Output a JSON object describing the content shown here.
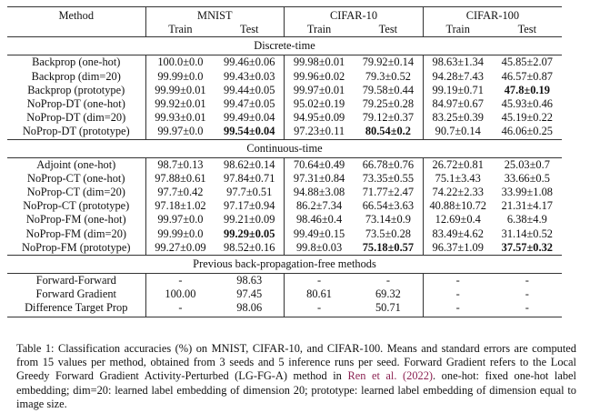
{
  "table": {
    "header": {
      "method": "Method",
      "datasets": [
        "MNIST",
        "CIFAR-10",
        "CIFAR-100"
      ],
      "splits": [
        "Train",
        "Test",
        "Train",
        "Test",
        "Train",
        "Test"
      ]
    },
    "sections": [
      {
        "title": "Discrete-time",
        "rows": [
          {
            "method": "Backprop (one-hot)",
            "cells": [
              "100.0±0.0",
              "99.46±0.06",
              "99.98±0.01",
              "79.92±0.14",
              "98.63±1.34",
              "45.85±2.07"
            ],
            "bold": []
          },
          {
            "method": "Backprop (dim=20)",
            "cells": [
              "99.99±0.0",
              "99.43±0.03",
              "99.96±0.02",
              "79.3±0.52",
              "94.28±7.43",
              "46.57±0.87"
            ],
            "bold": []
          },
          {
            "method": "Backprop (prototype)",
            "cells": [
              "99.99±0.01",
              "99.44±0.05",
              "99.97±0.01",
              "79.58±0.44",
              "99.19±0.71",
              "47.8±0.19"
            ],
            "bold": [
              5
            ]
          },
          {
            "method": "NoProp-DT (one-hot)",
            "cells": [
              "99.92±0.01",
              "99.47±0.05",
              "95.02±0.19",
              "79.25±0.28",
              "84.97±0.67",
              "45.93±0.46"
            ],
            "bold": []
          },
          {
            "method": "NoProp-DT (dim=20)",
            "cells": [
              "99.93±0.01",
              "99.49±0.04",
              "94.95±0.09",
              "79.12±0.37",
              "83.25±0.39",
              "45.19±0.22"
            ],
            "bold": []
          },
          {
            "method": "NoProp-DT (prototype)",
            "cells": [
              "99.97±0.0",
              "99.54±0.04",
              "97.23±0.11",
              "80.54±0.2",
              "90.7±0.14",
              "46.06±0.25"
            ],
            "bold": [
              1,
              3
            ]
          }
        ]
      },
      {
        "title": "Continuous-time",
        "rows": [
          {
            "method": "Adjoint (one-hot)",
            "cells": [
              "98.7±0.13",
              "98.62±0.14",
              "70.64±0.49",
              "66.78±0.76",
              "26.72±0.81",
              "25.03±0.7"
            ],
            "bold": []
          },
          {
            "method": "NoProp-CT (one-hot)",
            "cells": [
              "97.88±0.61",
              "97.84±0.71",
              "97.31±0.84",
              "73.35±0.55",
              "75.1±3.43",
              "33.66±0.5"
            ],
            "bold": []
          },
          {
            "method": "NoProp-CT (dim=20)",
            "cells": [
              "97.7±0.42",
              "97.7±0.51",
              "94.88±3.08",
              "71.77±2.47",
              "74.22±2.33",
              "33.99±1.08"
            ],
            "bold": []
          },
          {
            "method": "NoProp-CT (prototype)",
            "cells": [
              "97.18±1.02",
              "97.17±0.94",
              "86.2±7.34",
              "66.54±3.63",
              "40.88±10.72",
              "21.31±4.17"
            ],
            "bold": []
          },
          {
            "method": "NoProp-FM (one-hot)",
            "cells": [
              "99.97±0.0",
              "99.21±0.09",
              "98.46±0.4",
              "73.14±0.9",
              "12.69±0.4",
              "6.38±4.9"
            ],
            "bold": []
          },
          {
            "method": "NoProp-FM (dim=20)",
            "cells": [
              "99.99±0.0",
              "99.29±0.05",
              "99.49±0.15",
              "73.5±0.28",
              "83.49±4.62",
              "31.14±0.52"
            ],
            "bold": [
              1
            ]
          },
          {
            "method": "NoProp-FM (prototype)",
            "cells": [
              "99.27±0.09",
              "98.52±0.16",
              "99.8±0.03",
              "75.18±0.57",
              "96.37±1.09",
              "37.57±0.32"
            ],
            "bold": [
              3,
              5
            ]
          }
        ]
      },
      {
        "title": "Previous back-propagation-free methods",
        "rows": [
          {
            "method": "Forward-Forward",
            "cells": [
              "-",
              "98.63",
              "-",
              "-",
              "-",
              "-"
            ],
            "bold": []
          },
          {
            "method": "Forward Gradient",
            "cells": [
              "100.00",
              "97.45",
              "80.61",
              "69.32",
              "-",
              "-"
            ],
            "bold": []
          },
          {
            "method": "Difference Target Prop",
            "cells": [
              "-",
              "98.06",
              "-",
              "50.71",
              "-",
              "-"
            ],
            "bold": []
          }
        ]
      }
    ]
  },
  "caption": {
    "before": "Table 1: Classification accuracies (%) on MNIST, CIFAR-10, and CIFAR-100. Means and standard errors are computed from 15 values per method, obtained from 3 seeds and 5 inference runs per seed. Forward Gradient refers to the Local Greedy Forward Gradient Activity-Perturbed (LG-FG-A) method in",
    "link": "Ren et al. (2022)",
    "after": ". one-hot: fixed one-hot label embedding; dim=20: learned label embedding of dimension 20; prototype: learned label embedding of dimension equal to image size."
  }
}
